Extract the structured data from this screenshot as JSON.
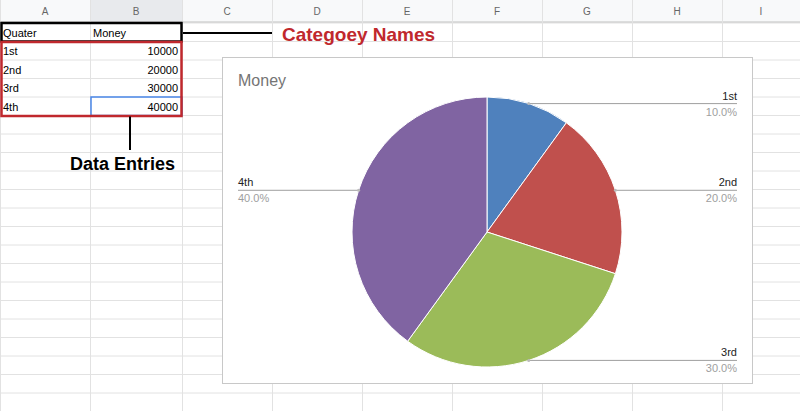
{
  "spreadsheet": {
    "columns": [
      "A",
      "B",
      "C",
      "D",
      "E",
      "F",
      "G",
      "H",
      "I"
    ],
    "rows": [
      [
        "Quater",
        "Money"
      ],
      [
        "1st",
        10000
      ],
      [
        "2nd",
        20000
      ],
      [
        "3rd",
        30000
      ],
      [
        "4th",
        40000
      ]
    ]
  },
  "annotations": [
    "Categoey Names",
    "Data Entries"
  ],
  "chart_data": {
    "type": "pie",
    "title": "Money",
    "categories": [
      "1st",
      "2nd",
      "3rd",
      "4th"
    ],
    "values": [
      10,
      20,
      30,
      40
    ],
    "value_labels": [
      "10.0%",
      "20.0%",
      "30.0%",
      "40.0%"
    ],
    "colors": [
      "#4f81bd",
      "#c0504d",
      "#9bbb59",
      "#8064a2"
    ],
    "data_labels": true
  }
}
